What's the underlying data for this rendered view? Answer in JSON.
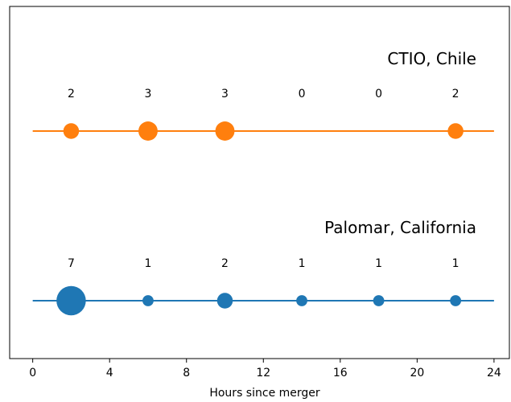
{
  "chart_data": {
    "type": "scatter",
    "title": "",
    "xlabel": "Hours since merger",
    "ylabel": "",
    "xlim": [
      -1.2,
      24.8
    ],
    "xticks": [
      0,
      4,
      8,
      12,
      16,
      20,
      24
    ],
    "xtick_labels": [
      "0",
      "4",
      "8",
      "12",
      "16",
      "20",
      "24"
    ],
    "grid": false,
    "series": [
      {
        "name": "CTIO, Chile",
        "color": "#ff7f0e",
        "x": [
          2,
          6,
          10,
          14,
          18,
          22
        ],
        "counts": [
          2,
          3,
          3,
          0,
          0,
          2
        ]
      },
      {
        "name": "Palomar, California",
        "color": "#1f77b4",
        "x": [
          2,
          6,
          10,
          14,
          18,
          22
        ],
        "counts": [
          7,
          1,
          2,
          1,
          1,
          1
        ]
      }
    ]
  }
}
